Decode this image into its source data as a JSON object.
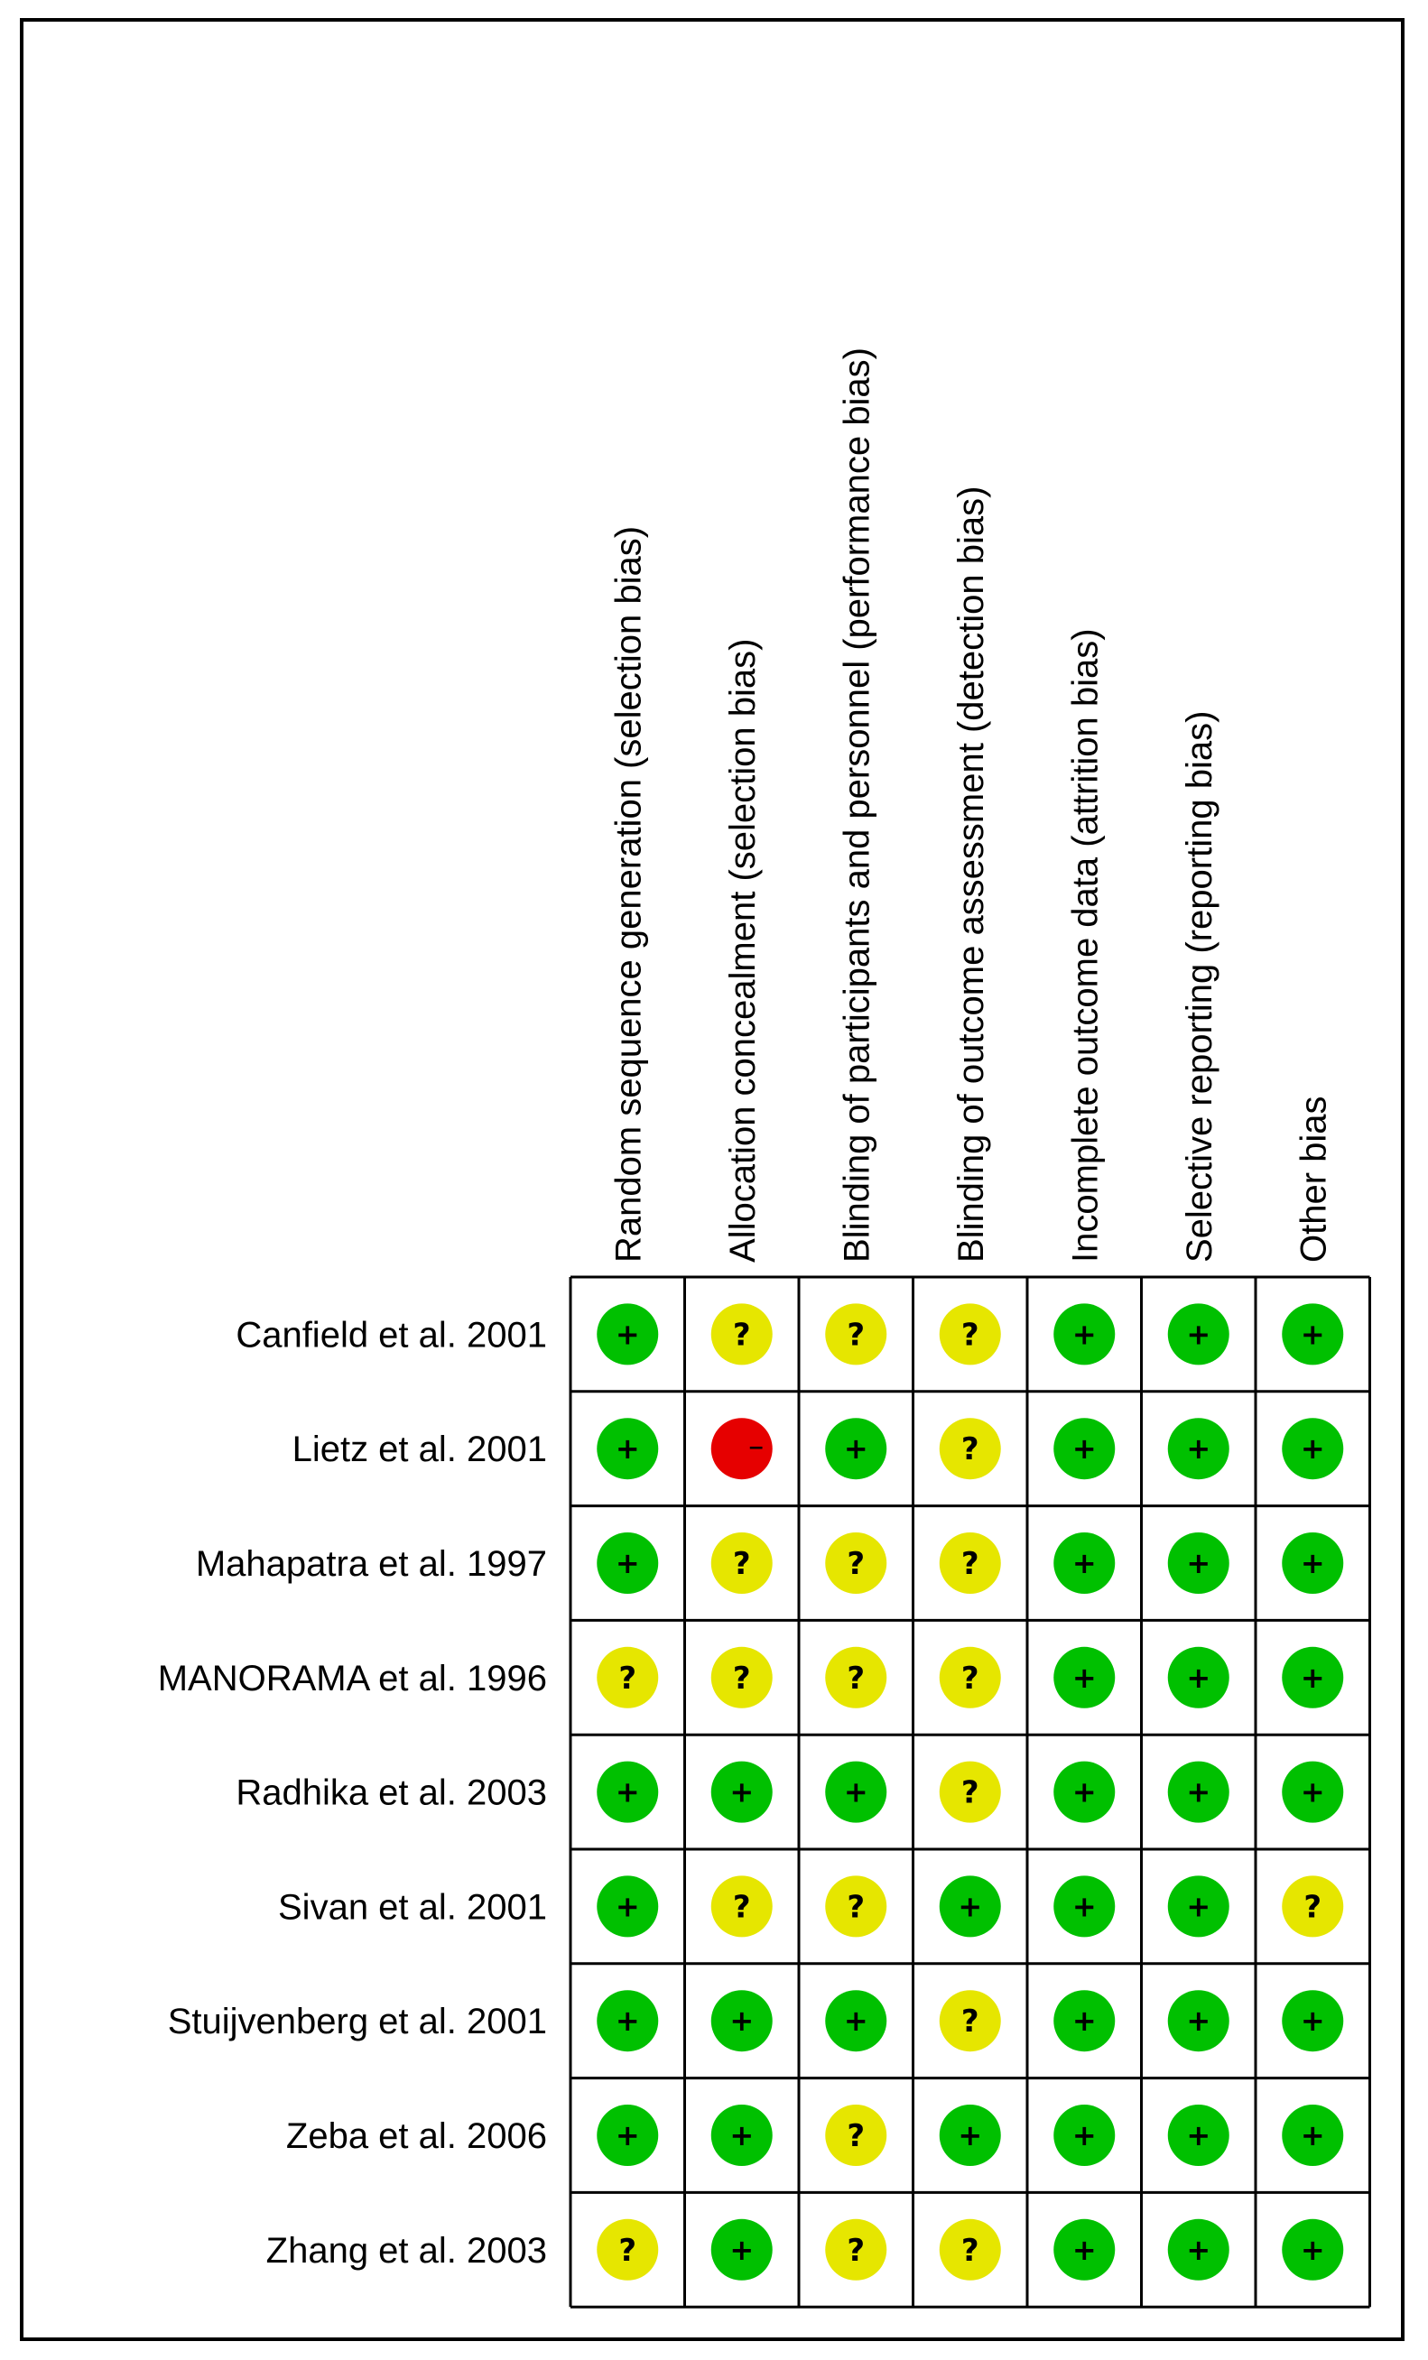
{
  "chart_data": {
    "type": "table",
    "domains": [
      "Random sequence generation (selection bias)",
      "Allocation concealment (selection bias)",
      "Blinding of participants and personnel (performance bias)",
      "Blinding of outcome assessment (detection bias)",
      "Incomplete outcome data (attrition bias)",
      "Selective reporting (reporting bias)",
      "Other bias"
    ],
    "studies": [
      {
        "name": "Canfield et al. 2001",
        "ratings": [
          "low",
          "unclear",
          "unclear",
          "unclear",
          "low",
          "low",
          "low"
        ]
      },
      {
        "name": "Lietz et al. 2001",
        "ratings": [
          "low",
          "high",
          "low",
          "unclear",
          "low",
          "low",
          "low"
        ]
      },
      {
        "name": "Mahapatra et al. 1997",
        "ratings": [
          "low",
          "unclear",
          "unclear",
          "unclear",
          "low",
          "low",
          "low"
        ]
      },
      {
        "name": "MANORAMA et al. 1996",
        "ratings": [
          "unclear",
          "unclear",
          "unclear",
          "unclear",
          "low",
          "low",
          "low"
        ]
      },
      {
        "name": "Radhika et al. 2003",
        "ratings": [
          "low",
          "low",
          "low",
          "unclear",
          "low",
          "low",
          "low"
        ]
      },
      {
        "name": "Sivan et al. 2001",
        "ratings": [
          "low",
          "unclear",
          "unclear",
          "low",
          "low",
          "low",
          "unclear"
        ]
      },
      {
        "name": "Stuijvenberg et al. 2001",
        "ratings": [
          "low",
          "low",
          "low",
          "unclear",
          "low",
          "low",
          "low"
        ]
      },
      {
        "name": "Zeba et al. 2006",
        "ratings": [
          "low",
          "low",
          "unclear",
          "low",
          "low",
          "low",
          "low"
        ]
      },
      {
        "name": "Zhang et al. 2003",
        "ratings": [
          "unclear",
          "low",
          "unclear",
          "unclear",
          "low",
          "low",
          "low"
        ]
      }
    ],
    "rating_styles": {
      "low": {
        "color": "#00c000",
        "symbol": "+"
      },
      "unclear": {
        "color": "#e6e600",
        "symbol": "?"
      },
      "high": {
        "color": "#e60000",
        "symbol": "−"
      }
    }
  }
}
